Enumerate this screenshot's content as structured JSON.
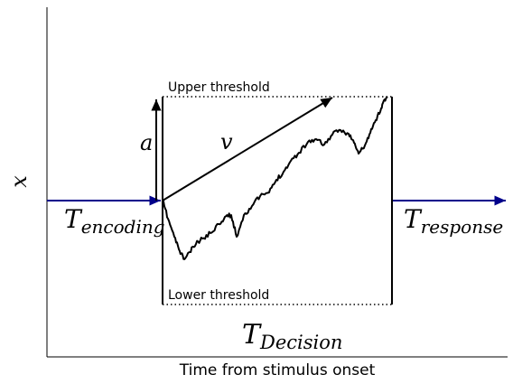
{
  "axes": {
    "ylabel": "x",
    "xlabel": "Time from stimulus onset"
  },
  "labels": {
    "upper_threshold": "Upper threshold",
    "lower_threshold": "Lower threshold",
    "boundary_separation": "a",
    "drift_rate": "v",
    "t_encoding_main": "T",
    "t_encoding_sub": "encoding",
    "t_response_main": "T",
    "t_response_sub": "response",
    "t_decision_main": "T",
    "t_decision_sub": "Decision"
  },
  "colors": {
    "baseline": "#00008B",
    "ink": "#000000",
    "background": "#ffffff"
  }
}
